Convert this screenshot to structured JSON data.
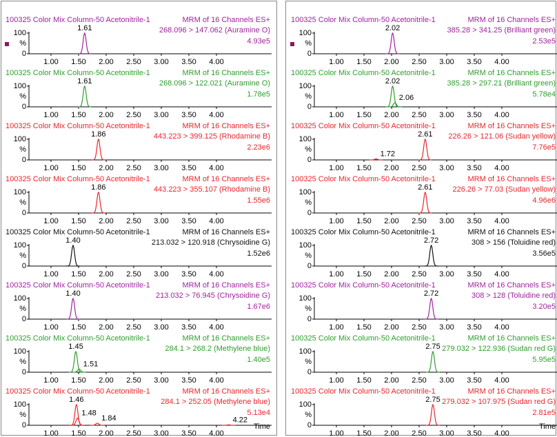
{
  "chart_data": {
    "type": "chromatogram",
    "xlim": [
      0.6,
      5.0
    ],
    "xticks": [
      {
        "value": 1,
        "label": "1.00"
      },
      {
        "value": 1.5,
        "label": "1.50"
      },
      {
        "value": 2,
        "label": "2.00"
      },
      {
        "value": 2.5,
        "label": "2.50"
      },
      {
        "value": 3,
        "label": "3.00"
      },
      {
        "value": 3.5,
        "label": "3.50"
      },
      {
        "value": 4,
        "label": "4.00"
      }
    ],
    "ylim": [
      0,
      100
    ],
    "yticks": [
      0,
      100
    ],
    "y_label": "%",
    "x_label": "Time",
    "columns": [
      {
        "panels": [
          {
            "sample": "100325 Color Mix Column-50 Acetonitrile-1",
            "function": "MRM of 16 Channels ES+",
            "transition": "268.096 > 147.062 (Auramine O)",
            "intensity": "4.93e5",
            "color": "#a0229f",
            "peaks": [
              {
                "x": 1.61,
                "height": 100
              }
            ]
          },
          {
            "sample": "100325 Color Mix Column-50 Acetonitrile-1",
            "function": "MRM of 16 Channels ES+",
            "transition": "268.096 > 122.021 (Auramine O)",
            "intensity": "1.78e5",
            "color": "#2e9e2e",
            "peaks": [
              {
                "x": 1.61,
                "height": 100
              }
            ]
          },
          {
            "sample": "100325 Color Mix Column-50 Acetonitrile-1",
            "function": "MRM of 16 Channels ES+",
            "transition": "443.223 > 399.125 (Rhodamine B)",
            "intensity": "2.23e6",
            "color": "#e8262c",
            "peaks": [
              {
                "x": 1.86,
                "height": 100
              }
            ]
          },
          {
            "sample": "100325 Color Mix Column-50 Acetonitrile-1",
            "function": "MRM of 16 Channels ES+",
            "transition": "443.223 > 355.107 (Rhodamine B)",
            "intensity": "1.55e6",
            "color": "#e8262c",
            "peaks": [
              {
                "x": 1.86,
                "height": 100
              }
            ]
          },
          {
            "sample": "100325 Color Mix Column-50 Acetonitrile-1",
            "function": "MRM of 16 Channels ES+",
            "transition": "213.032 > 120.918 (Chrysoidine G)",
            "intensity": "1.52e6",
            "color": "#111111",
            "peaks": [
              {
                "x": {
                  "value": 1.4,
                  "label": "1.40"
                },
                "height": 100
              }
            ]
          },
          {
            "sample": "100325 Color Mix Column-50 Acetonitrile-1",
            "function": "MRM of 16 Channels ES+",
            "transition": "213.032 > 76.945 (Chrysoidine G)",
            "intensity": "1.67e6",
            "color": "#a0229f",
            "peaks": [
              {
                "x": {
                  "value": 1.4,
                  "label": "1.40"
                },
                "height": 100
              }
            ]
          },
          {
            "sample": "100325 Color Mix Column-50 Acetonitrile-1",
            "function": "MRM of 16 Channels ES+",
            "transition": "284.1 > 268.2 (Methylene blue)",
            "intensity": "1.40e5",
            "color": "#2e9e2e",
            "peaks": [
              {
                "x": 1.45,
                "height": 100
              },
              {
                "x": 1.51,
                "height": 15
              }
            ]
          },
          {
            "sample": "100325 Color Mix Column-50 Acetonitrile-1",
            "function": "MRM of 16 Channels ES+",
            "transition": "284.1 > 252.05 (Methylene blue)",
            "intensity": "5.13e4",
            "color": "#e8262c",
            "peaks": [
              {
                "x": 1.46,
                "height": 100
              },
              {
                "x": 1.48,
                "height": 35
              },
              {
                "x": 1.84,
                "height": 10
              },
              {
                "x": 4.22,
                "height": 2
              }
            ]
          }
        ]
      },
      {
        "panels": [
          {
            "sample": "100325 Color Mix Column-50 Acetonitrile-1",
            "function": "MRM of 16 Channels ES+",
            "transition": "385.28 > 341.25 (Brilliant green)",
            "intensity": "2.53e5",
            "color": "#a0229f",
            "peaks": [
              {
                "x": 2.02,
                "height": 100
              }
            ]
          },
          {
            "sample": "100325 Color Mix Column-50 Acetonitrile-1",
            "function": "MRM of 16 Channels ES+",
            "transition": "385.28 > 297.21 (Brilliant green)",
            "intensity": "5.78e4",
            "color": "#2e9e2e",
            "peaks": [
              {
                "x": 2.02,
                "height": 100
              },
              {
                "x": 2.06,
                "height": 20
              }
            ]
          },
          {
            "sample": "100325 Color Mix Column-50 Acetonitrile-1",
            "function": "MRM of 16 Channels ES+",
            "transition": "226.26 > 121.06 (Sudan yellow)",
            "intensity": "7.76e5",
            "color": "#e8262c",
            "peaks": [
              {
                "x": 1.72,
                "height": 5
              },
              {
                "x": 2.61,
                "height": 100
              }
            ]
          },
          {
            "sample": "100325 Color Mix Column-50 Acetonitrile-1",
            "function": "MRM of 16 Channels ES+",
            "transition": "226.26 > 77.03 (Sudan yellow)",
            "intensity": "4.96e6",
            "color": "#e8262c",
            "peaks": [
              {
                "x": 2.61,
                "height": 100
              }
            ]
          },
          {
            "sample": "100325 Color Mix Column-50 Acetonitrile-1",
            "function": "MRM of 16 Channels ES+",
            "transition": "308 > 156 (Toluidine red)",
            "intensity": "3.56e5",
            "color": "#111111",
            "peaks": [
              {
                "x": 2.72,
                "height": 100
              }
            ]
          },
          {
            "sample": "100325 Color Mix Column-50 Acetonitrile-1",
            "function": "MRM of 16 Channels ES+",
            "transition": "308 > 128 (Toluidine red)",
            "intensity": "3.20e5",
            "color": "#a0229f",
            "peaks": [
              {
                "x": 2.72,
                "height": 100
              }
            ]
          },
          {
            "sample": "100325 Color Mix Column-50 Acetonitrile-1",
            "function": "MRM of 16 Channels ES+",
            "transition": "279.032 > 122.936 (Sudan red G)",
            "intensity": "5.95e5",
            "color": "#2e9e2e",
            "peaks": [
              {
                "x": 2.75,
                "height": 100
              }
            ]
          },
          {
            "sample": "100325 Color Mix Column-50 Acetonitrile-1",
            "function": "MRM of 16 Channels ES+",
            "transition": "279.032 > 107.975 (Sudan red G)",
            "intensity": "2.81e5",
            "color": "#e8262c",
            "peaks": [
              {
                "x": 2.75,
                "height": 100
              }
            ]
          }
        ]
      }
    ]
  }
}
